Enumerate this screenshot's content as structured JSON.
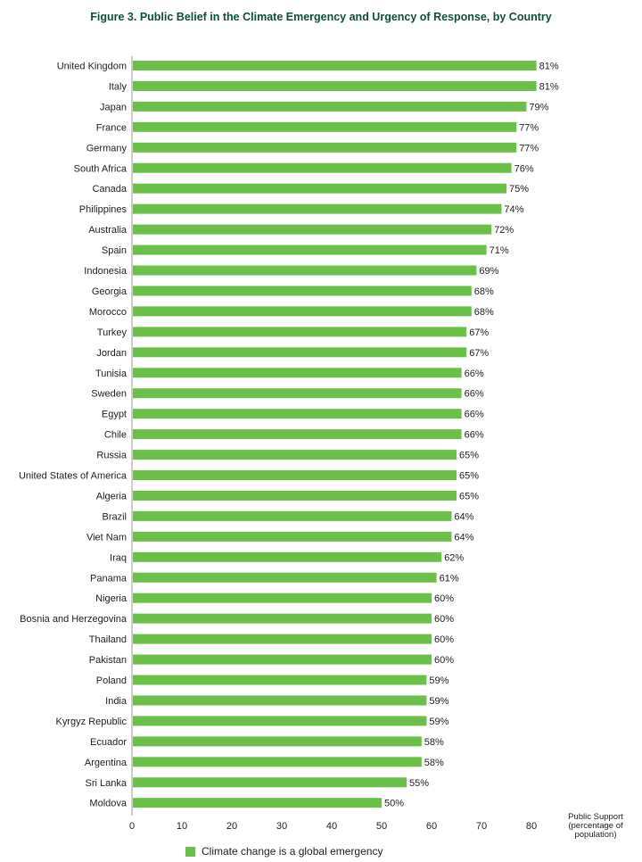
{
  "chart_data": {
    "type": "bar",
    "orientation": "horizontal",
    "title": "Figure  3. Public Belief in the Climate Emergency and Urgency of Response, by Country",
    "xlabel": [
      "Public Support",
      "(percentage of",
      "population)"
    ],
    "xlim": [
      0,
      85
    ],
    "xticks": [
      0,
      10,
      20,
      30,
      40,
      50,
      60,
      70,
      80
    ],
    "bar_color": "#6cc04a",
    "legend": {
      "position": "bottom",
      "label": "Climate change is a global emergency"
    },
    "categories": [
      "United Kingdom",
      "Italy",
      "Japan",
      "France",
      "Germany",
      "South Africa",
      "Canada",
      "Philippines",
      "Australia",
      "Spain",
      "Indonesia",
      "Georgia",
      "Morocco",
      "Turkey",
      "Jordan",
      "Tunisia",
      "Sweden",
      "Egypt",
      "Chile",
      "Russia",
      "United States of America",
      "Algeria",
      "Brazil",
      "Viet Nam",
      "Iraq",
      "Panama",
      "Nigeria",
      "Bosnia and Herzegovina",
      "Thailand",
      "Pakistan",
      "Poland",
      "India",
      "Kyrgyz Republic",
      "Ecuador",
      "Argentina",
      "Sri Lanka",
      "Moldova"
    ],
    "values": [
      81,
      81,
      79,
      77,
      77,
      76,
      75,
      74,
      72,
      71,
      69,
      68,
      68,
      67,
      67,
      66,
      66,
      66,
      66,
      65,
      65,
      65,
      64,
      64,
      62,
      61,
      60,
      60,
      60,
      60,
      59,
      59,
      59,
      58,
      58,
      55,
      50
    ],
    "value_suffix": "%"
  }
}
